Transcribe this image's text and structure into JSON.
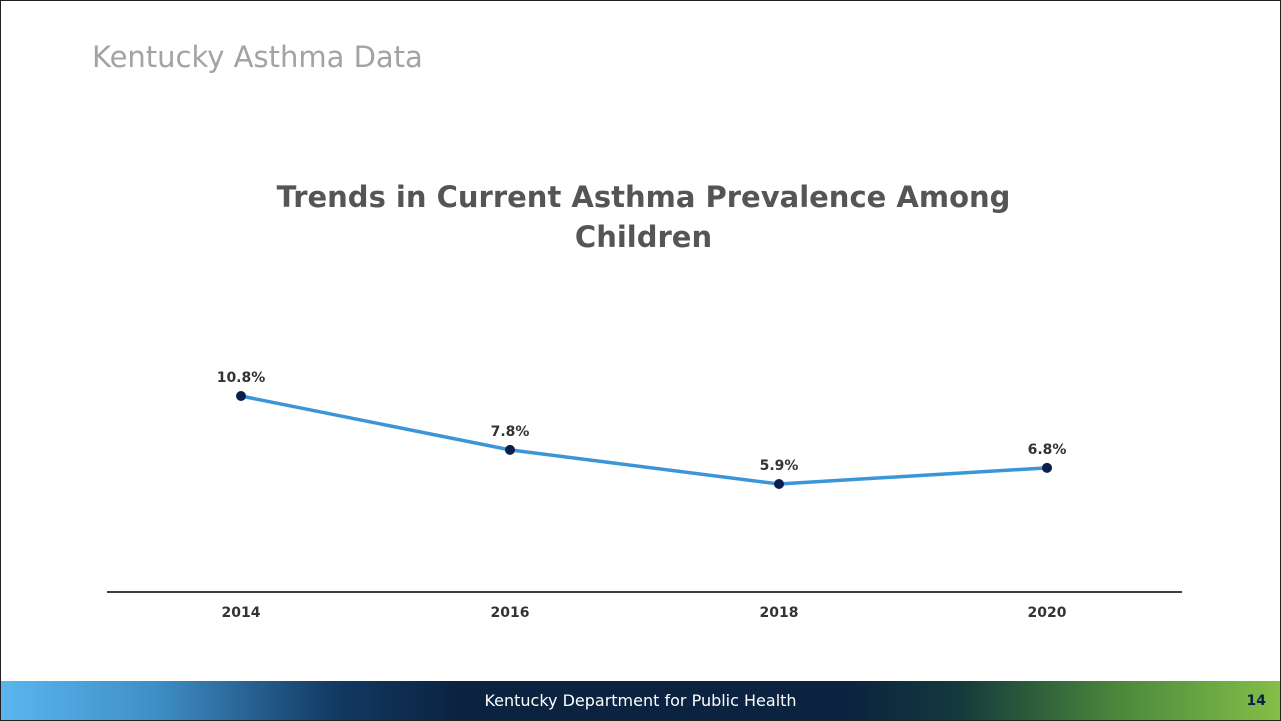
{
  "slide": {
    "section_title": "Kentucky Asthma Data",
    "footer_text": "Kentucky Department for Public Health",
    "page_number": "14"
  },
  "chart_data": {
    "type": "line",
    "title": "Trends in Current Asthma Prevalence Among Children",
    "xlabel": "",
    "ylabel": "",
    "categories": [
      "2014",
      "2016",
      "2018",
      "2020"
    ],
    "series": [
      {
        "values": [
          10.8,
          7.8,
          5.9,
          6.8
        ],
        "labels": [
          "10.8%",
          "7.8%",
          "5.9%",
          "6.8%"
        ]
      }
    ],
    "line_color": "#3a96d8",
    "marker_color": "#0b1f4d",
    "grid": false,
    "legend": "none"
  }
}
